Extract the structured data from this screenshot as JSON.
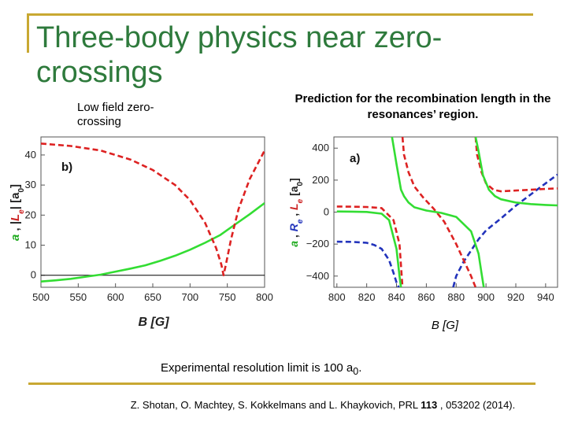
{
  "slide": {
    "title": "Three-body physics near zero-crossings",
    "subtitle_left": "Low field zero-crossing",
    "subtitle_right": "Prediction for the recombination length in the resonances’ region.",
    "resolution_note_prefix": "Experimental resolution limit is 100 a",
    "resolution_note_sub": "0",
    "resolution_note_suffix": ".",
    "citation_prefix": "Z. Shotan, O. Machtey, S. Kokkelmans and L. Khaykovich, PRL ",
    "citation_volume": "113",
    "citation_suffix": " , 053202 (2014).",
    "accent_color": "#c8a832",
    "title_color": "#2e7a3c"
  },
  "chart_data": [
    {
      "type": "line",
      "panel_label": "b)",
      "xlabel": "B [G]",
      "ylabel_a": "a",
      "ylabel_sep": " ,  |",
      "ylabel_L": "L",
      "ylabel_L_sub": "e",
      "ylabel_unit": "|  [a",
      "ylabel_unit_sub": "0",
      "ylabel_end": "]",
      "xlim": [
        500,
        800
      ],
      "ylim": [
        -4,
        46
      ],
      "xticks": [
        "500",
        "550",
        "600",
        "650",
        "700",
        "750",
        "800"
      ],
      "yticks": [
        "0",
        "10",
        "20",
        "30",
        "40"
      ],
      "series": [
        {
          "color": "#33dd33",
          "dash": "solid",
          "x": [
            500,
            520,
            540,
            560,
            580,
            600,
            620,
            640,
            660,
            680,
            700,
            720,
            740,
            760,
            780,
            800
          ],
          "y": [
            -2.1,
            -1.7,
            -1.2,
            -0.5,
            0.2,
            1.2,
            2.2,
            3.3,
            4.8,
            6.5,
            8.5,
            10.8,
            13.3,
            16.8,
            20.3,
            24.0
          ]
        },
        {
          "color": "#dd2222",
          "dash": "dash",
          "x": [
            500,
            540,
            580,
            620,
            650,
            680,
            700,
            720,
            735,
            742,
            745,
            748,
            755,
            765,
            780,
            800
          ],
          "y": [
            43.8,
            43.0,
            41.5,
            38.5,
            35.0,
            30.0,
            25.0,
            17.5,
            9.0,
            3.5,
            0.0,
            3.5,
            12.0,
            22.0,
            32.0,
            41.5
          ]
        }
      ]
    },
    {
      "type": "line",
      "panel_label": "a)",
      "xlabel": "B [G]",
      "ylabel_a": "a",
      "ylabel_sep": " ,  R",
      "ylabel_R_sub": "e",
      "ylabel_sep2": " ,  L",
      "ylabel_L_sub": "e",
      "ylabel_unit": "  [a",
      "ylabel_unit_sub": "0",
      "ylabel_end": "]",
      "xlim": [
        798,
        948
      ],
      "ylim": [
        -470,
        470
      ],
      "xticks": [
        "800",
        "820",
        "840",
        "860",
        "880",
        "900",
        "920",
        "940"
      ],
      "yticks": [
        "−400",
        "−200",
        "0",
        "200",
        "400"
      ],
      "series": [
        {
          "color": "#2233bb",
          "dash": "dash",
          "x": [
            800,
            810,
            820,
            825,
            830,
            835,
            838,
            840,
            841.5
          ],
          "y": [
            -185,
            -186,
            -192,
            -205,
            -230,
            -300,
            -380,
            -440,
            -470
          ]
        },
        {
          "color": "#2233bb",
          "dash": "dash",
          "x": [
            878,
            880,
            885,
            890,
            895,
            900,
            910,
            920,
            930,
            940,
            948
          ],
          "y": [
            -470,
            -400,
            -310,
            -240,
            -170,
            -115,
            -40,
            40,
            110,
            180,
            235
          ]
        },
        {
          "color": "#dd2222",
          "dash": "dash",
          "x": [
            800,
            810,
            820,
            830,
            838,
            842,
            844
          ],
          "y": [
            35,
            34,
            32,
            25,
            -50,
            -200,
            -470
          ]
        },
        {
          "color": "#dd2222",
          "dash": "dash",
          "x": [
            844,
            845,
            848,
            852,
            858,
            865,
            872,
            880,
            886,
            890,
            893
          ],
          "y": [
            470,
            360,
            250,
            160,
            90,
            20,
            -60,
            -200,
            -320,
            -400,
            -470
          ]
        },
        {
          "color": "#dd2222",
          "dash": "dash",
          "x": [
            893,
            894,
            897,
            900,
            905,
            910,
            920,
            930,
            940,
            948
          ],
          "y": [
            470,
            360,
            250,
            180,
            140,
            130,
            135,
            140,
            145,
            148
          ]
        },
        {
          "color": "#33dd33",
          "dash": "solid",
          "x": [
            800,
            810,
            820,
            830,
            835,
            840,
            842,
            843
          ],
          "y": [
            4,
            3,
            1,
            -10,
            -50,
            -230,
            -400,
            -470
          ]
        },
        {
          "color": "#33dd33",
          "dash": "solid",
          "x": [
            837,
            840,
            843,
            845,
            848,
            852,
            860,
            870,
            880,
            890,
            895,
            897,
            898.5
          ],
          "y": [
            470,
            300,
            140,
            100,
            60,
            30,
            10,
            -5,
            -30,
            -120,
            -260,
            -380,
            -470
          ]
        },
        {
          "color": "#33dd33",
          "dash": "solid",
          "x": [
            893,
            895,
            898,
            902,
            906,
            910,
            920,
            930,
            940,
            948
          ],
          "y": [
            470,
            380,
            230,
            140,
            100,
            80,
            60,
            50,
            45,
            42
          ]
        }
      ]
    }
  ]
}
